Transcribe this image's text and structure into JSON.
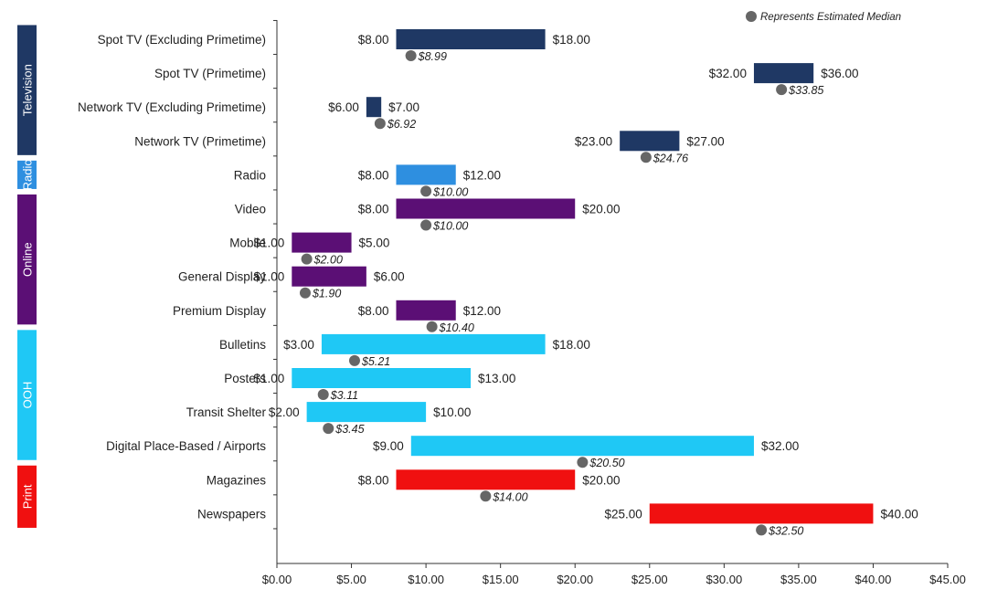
{
  "chart_data": {
    "type": "bar",
    "subtype": "floating-range-with-median",
    "legend": {
      "label": "Represents Estimated Median",
      "position": "top-right"
    },
    "xlim": [
      0,
      45
    ],
    "x_ticks": [
      "$0.00",
      "$5.00",
      "$10.00",
      "$15.00",
      "$20.00",
      "$25.00",
      "$30.00",
      "$35.00",
      "$40.00",
      "$45.00"
    ],
    "x_tick_values": [
      0,
      5,
      10,
      15,
      20,
      25,
      30,
      35,
      40,
      45
    ],
    "groups": [
      {
        "name": "Television",
        "color": "#1f3864",
        "rows": [
          0,
          3
        ]
      },
      {
        "name": "Radio",
        "color": "#2e8fe0",
        "rows": [
          4,
          4
        ]
      },
      {
        "name": "Online",
        "color": "#5b0f75",
        "rows": [
          5,
          8
        ]
      },
      {
        "name": "OOH",
        "color": "#1fc8f5",
        "rows": [
          9,
          12
        ]
      },
      {
        "name": "Print",
        "color": "#f01010",
        "rows": [
          13,
          14
        ]
      }
    ],
    "categories": [
      {
        "name": "Spot TV (Excluding Primetime)",
        "low": 8,
        "high": 18,
        "median": 8.99,
        "low_label": "$8.00",
        "high_label": "$18.00",
        "median_label": "$8.99",
        "color": "#1f3864"
      },
      {
        "name": "Spot TV (Primetime)",
        "low": 32,
        "high": 36,
        "median": 33.85,
        "low_label": "$32.00",
        "high_label": "$36.00",
        "median_label": "$33.85",
        "color": "#1f3864"
      },
      {
        "name": "Network TV (Excluding Primetime)",
        "low": 6,
        "high": 7,
        "median": 6.92,
        "low_label": "$6.00",
        "high_label": "$7.00",
        "median_label": "$6.92",
        "color": "#1f3864"
      },
      {
        "name": "Network TV (Primetime)",
        "low": 23,
        "high": 27,
        "median": 24.76,
        "low_label": "$23.00",
        "high_label": "$27.00",
        "median_label": "$24.76",
        "color": "#1f3864"
      },
      {
        "name": "Radio",
        "low": 8,
        "high": 12,
        "median": 10.0,
        "low_label": "$8.00",
        "high_label": "$12.00",
        "median_label": "$10.00",
        "color": "#2e8fe0"
      },
      {
        "name": "Video",
        "low": 8,
        "high": 20,
        "median": 10.0,
        "low_label": "$8.00",
        "high_label": "$20.00",
        "median_label": "$10.00",
        "color": "#5b0f75"
      },
      {
        "name": "Mobile",
        "low": 1,
        "high": 5,
        "median": 2.0,
        "low_label": "$1.00",
        "high_label": "$5.00",
        "median_label": "$2.00",
        "color": "#5b0f75"
      },
      {
        "name": "General Display",
        "low": 1,
        "high": 6,
        "median": 1.9,
        "low_label": "$1.00",
        "high_label": "$6.00",
        "median_label": "$1.90",
        "color": "#5b0f75"
      },
      {
        "name": "Premium Display",
        "low": 8,
        "high": 12,
        "median": 10.4,
        "low_label": "$8.00",
        "high_label": "$12.00",
        "median_label": "$10.40",
        "color": "#5b0f75"
      },
      {
        "name": "Bulletins",
        "low": 3,
        "high": 18,
        "median": 5.21,
        "low_label": "$3.00",
        "high_label": "$18.00",
        "median_label": "$5.21",
        "color": "#1fc8f5"
      },
      {
        "name": "Posters",
        "low": 1,
        "high": 13,
        "median": 3.11,
        "low_label": "$1.00",
        "high_label": "$13.00",
        "median_label": "$3.11",
        "color": "#1fc8f5"
      },
      {
        "name": "Transit Shelter",
        "low": 2,
        "high": 10,
        "median": 3.45,
        "low_label": "$2.00",
        "high_label": "$10.00",
        "median_label": "$3.45",
        "color": "#1fc8f5"
      },
      {
        "name": "Digital Place-Based / Airports",
        "low": 9,
        "high": 32,
        "median": 20.5,
        "low_label": "$9.00",
        "high_label": "$32.00",
        "median_label": "$20.50",
        "color": "#1fc8f5"
      },
      {
        "name": "Magazines",
        "low": 8,
        "high": 20,
        "median": 14.0,
        "low_label": "$8.00",
        "high_label": "$20.00",
        "median_label": "$14.00",
        "color": "#f01010"
      },
      {
        "name": "Newspapers",
        "low": 25,
        "high": 40,
        "median": 32.5,
        "low_label": "$25.00",
        "high_label": "$40.00",
        "median_label": "$32.50",
        "color": "#f01010"
      }
    ],
    "median_marker_color": "#666666",
    "grid": false
  }
}
